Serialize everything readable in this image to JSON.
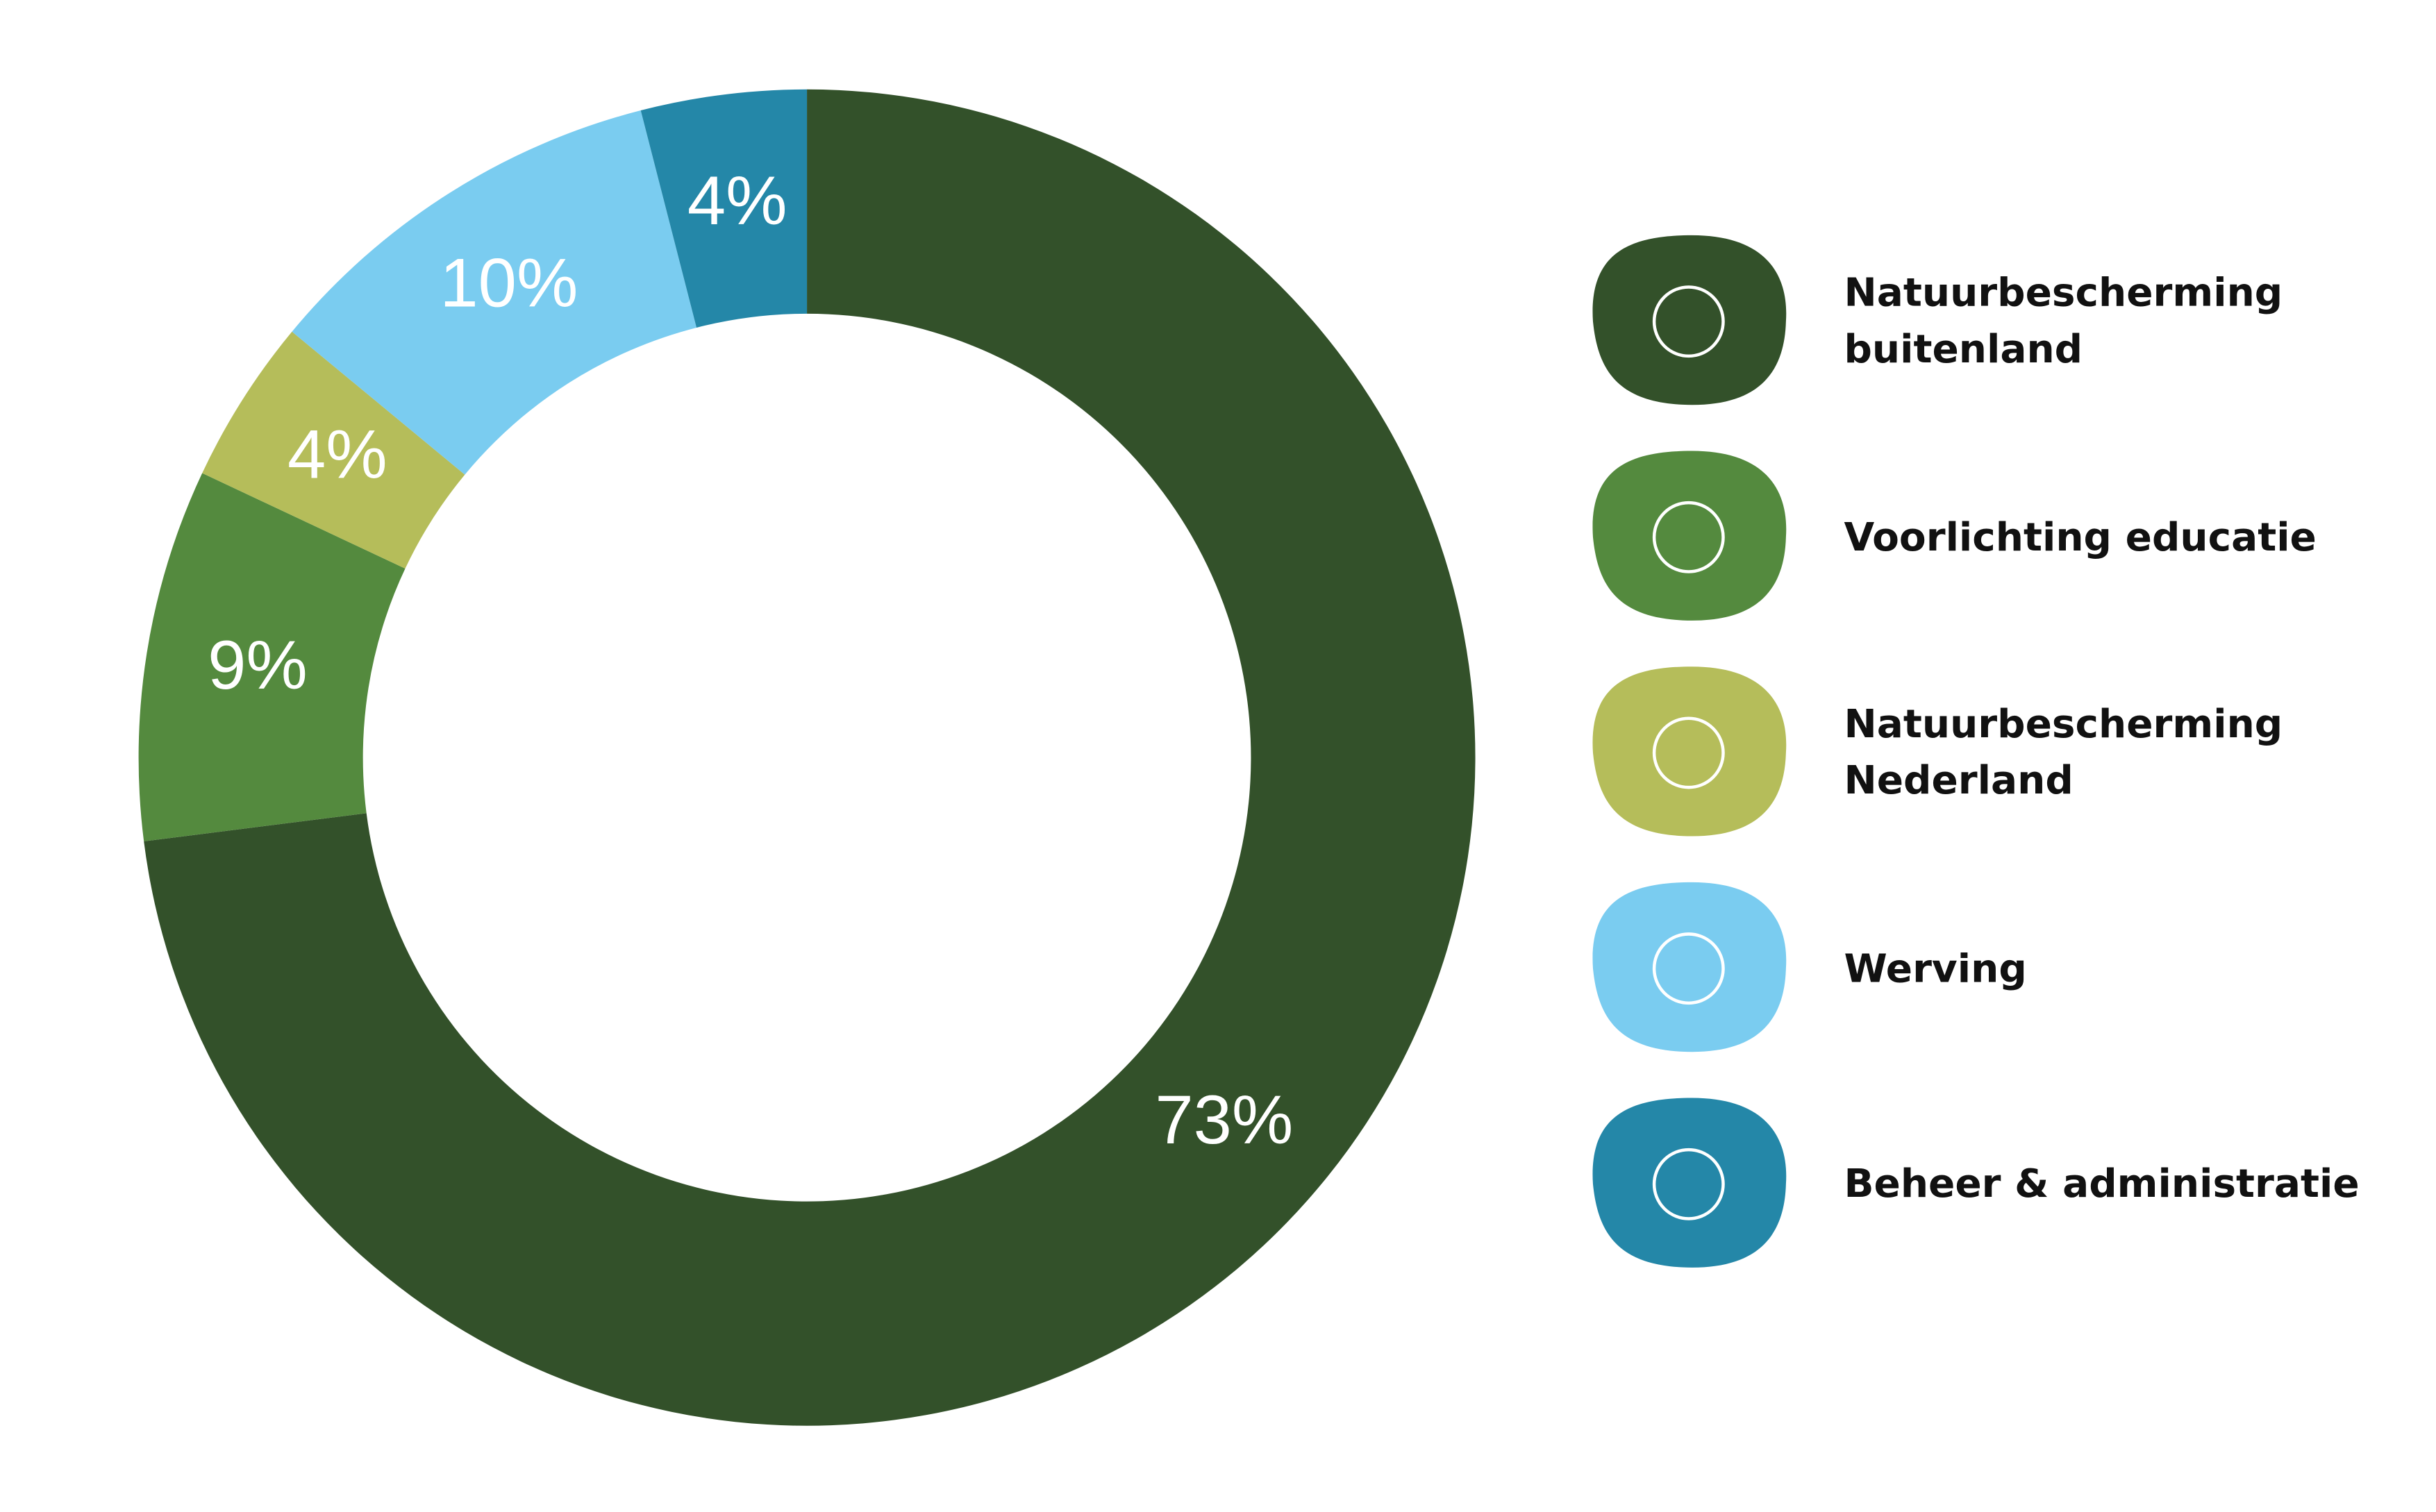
{
  "chart_data": {
    "type": "donut",
    "categories": [
      "Natuurbescherming\nbuitenland",
      "Voorlichting educatie",
      "Natuurbescherming\nNederland",
      "Werving",
      "Beheer & administratie"
    ],
    "values": [
      73,
      9,
      4,
      10,
      4
    ],
    "value_labels": [
      "73%",
      "9%",
      "4%",
      "10%",
      "4%"
    ],
    "colors": [
      "#33512a",
      "#548a3e",
      "#b5bd5a",
      "#7accf0",
      "#2487a8"
    ]
  }
}
